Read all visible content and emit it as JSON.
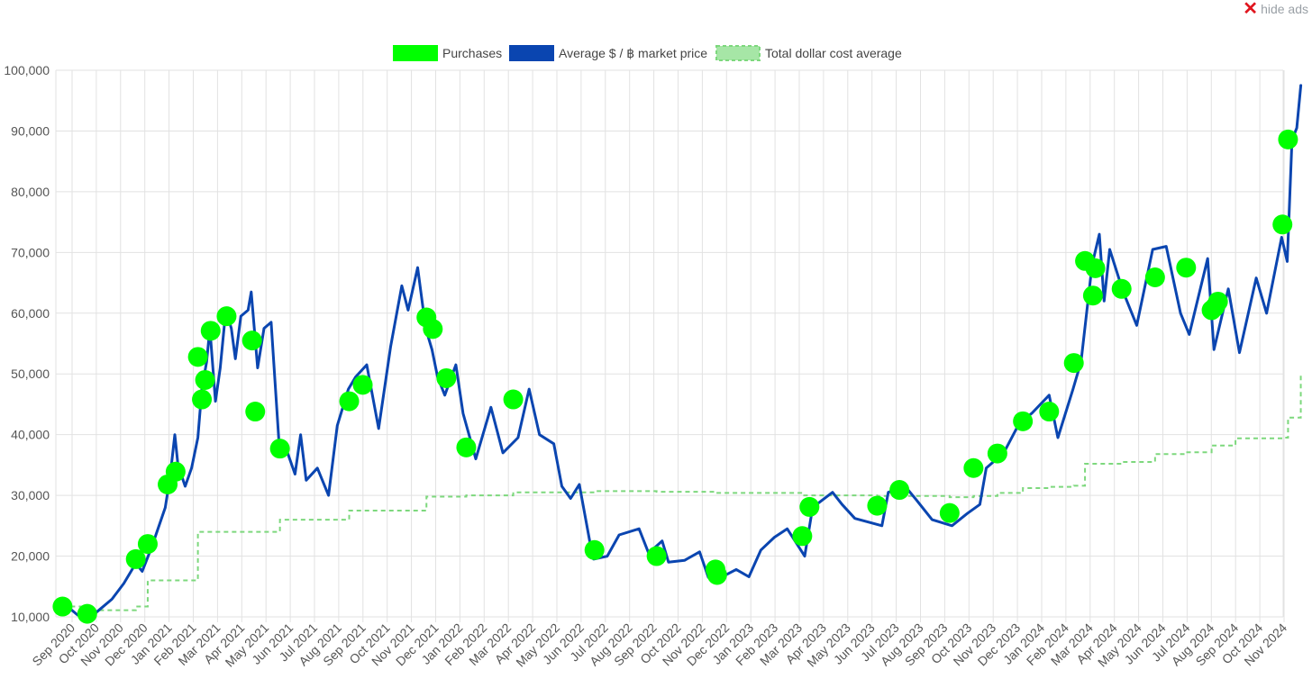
{
  "ui": {
    "hide_ads_label": "hide ads"
  },
  "chart_data": {
    "type": "line",
    "ylim": [
      10000,
      100000
    ],
    "grid": true,
    "legend_placement": "top-center",
    "y_ticks": [
      "10,000",
      "20,000",
      "30,000",
      "40,000",
      "50,000",
      "60,000",
      "70,000",
      "80,000",
      "90,000",
      "100,000"
    ],
    "x_ticks": [
      "Sep 2020",
      "Oct 2020",
      "Nov 2020",
      "Dec 2020",
      "Jan 2021",
      "Feb 2021",
      "Mar 2021",
      "Apr 2021",
      "May 2021",
      "Jun 2021",
      "Jul 2021",
      "Aug 2021",
      "Sep 2021",
      "Oct 2021",
      "Nov 2021",
      "Dec 2021",
      "Jan 2022",
      "Feb 2022",
      "Mar 2022",
      "Apr 2022",
      "May 2022",
      "Jun 2022",
      "Jul 2022",
      "Aug 2022",
      "Sep 2022",
      "Oct 2022",
      "Nov 2022",
      "Dec 2022",
      "Jan 2023",
      "Feb 2023",
      "Mar 2023",
      "Apr 2023",
      "May 2023",
      "Jun 2023",
      "Jul 2023",
      "Aug 2023",
      "Sep 2023",
      "Oct 2023",
      "Nov 2023",
      "Dec 2023",
      "Jan 2024",
      "Feb 2024",
      "Mar 2024",
      "Apr 2024",
      "May 2024",
      "Jun 2024",
      "Jul 2024",
      "Aug 2024",
      "Sep 2024",
      "Oct 2024",
      "Nov 2024"
    ],
    "series": [
      {
        "name": "Purchases",
        "kind": "points",
        "color": "#00ff00",
        "points": [
          {
            "x": "2020-08-20",
            "y": 11700
          },
          {
            "x": "2020-09-20",
            "y": 10500
          },
          {
            "x": "2020-11-20",
            "y": 19500
          },
          {
            "x": "2020-12-05",
            "y": 22000
          },
          {
            "x": "2020-12-30",
            "y": 31800
          },
          {
            "x": "2021-01-09",
            "y": 33900
          },
          {
            "x": "2021-02-06",
            "y": 52800
          },
          {
            "x": "2021-02-11",
            "y": 45800
          },
          {
            "x": "2021-02-15",
            "y": 49000
          },
          {
            "x": "2021-02-22",
            "y": 57100
          },
          {
            "x": "2021-03-14",
            "y": 59500
          },
          {
            "x": "2021-04-15",
            "y": 55500
          },
          {
            "x": "2021-04-19",
            "y": 43800
          },
          {
            "x": "2021-05-20",
            "y": 37700
          },
          {
            "x": "2021-08-15",
            "y": 45500
          },
          {
            "x": "2021-09-01",
            "y": 48200
          },
          {
            "x": "2021-11-20",
            "y": 59300
          },
          {
            "x": "2021-11-28",
            "y": 57400
          },
          {
            "x": "2021-12-15",
            "y": 49300
          },
          {
            "x": "2022-01-09",
            "y": 37900
          },
          {
            "x": "2022-03-09",
            "y": 45800
          },
          {
            "x": "2022-06-19",
            "y": 21000
          },
          {
            "x": "2022-09-05",
            "y": 20000
          },
          {
            "x": "2022-11-18",
            "y": 17800
          },
          {
            "x": "2022-11-20",
            "y": 16900
          },
          {
            "x": "2023-03-07",
            "y": 23300
          },
          {
            "x": "2023-03-16",
            "y": 28100
          },
          {
            "x": "2023-06-09",
            "y": 28300
          },
          {
            "x": "2023-07-07",
            "y": 30900
          },
          {
            "x": "2023-09-08",
            "y": 27100
          },
          {
            "x": "2023-10-08",
            "y": 34500
          },
          {
            "x": "2023-11-07",
            "y": 36900
          },
          {
            "x": "2023-12-09",
            "y": 42200
          },
          {
            "x": "2024-01-11",
            "y": 43800
          },
          {
            "x": "2024-02-11",
            "y": 51800
          },
          {
            "x": "2024-02-25",
            "y": 68600
          },
          {
            "x": "2024-03-06",
            "y": 62900
          },
          {
            "x": "2024-03-09",
            "y": 67400
          },
          {
            "x": "2024-04-11",
            "y": 64000
          },
          {
            "x": "2024-05-23",
            "y": 65900
          },
          {
            "x": "2024-07-01",
            "y": 67500
          },
          {
            "x": "2024-08-02",
            "y": 60500
          },
          {
            "x": "2024-08-06",
            "y": 61000
          },
          {
            "x": "2024-08-10",
            "y": 61900
          },
          {
            "x": "2024-10-30",
            "y": 74600
          },
          {
            "x": "2024-11-06",
            "y": 88600
          }
        ]
      },
      {
        "name": "Average $ / ฿ market price",
        "kind": "line",
        "color": "#0a45b0",
        "points": [
          {
            "x": "2020-08-14",
            "y": 11700
          },
          {
            "x": "2020-08-28",
            "y": 11500
          },
          {
            "x": "2020-09-08",
            "y": 10300
          },
          {
            "x": "2020-09-22",
            "y": 10500
          },
          {
            "x": "2020-10-01",
            "y": 10700
          },
          {
            "x": "2020-10-21",
            "y": 12900
          },
          {
            "x": "2020-11-05",
            "y": 15500
          },
          {
            "x": "2020-11-20",
            "y": 18800
          },
          {
            "x": "2020-11-28",
            "y": 17500
          },
          {
            "x": "2020-12-10",
            "y": 21500
          },
          {
            "x": "2020-12-27",
            "y": 28000
          },
          {
            "x": "2021-01-02",
            "y": 33000
          },
          {
            "x": "2021-01-08",
            "y": 40000
          },
          {
            "x": "2021-01-12",
            "y": 35000
          },
          {
            "x": "2021-01-21",
            "y": 31500
          },
          {
            "x": "2021-01-29",
            "y": 34500
          },
          {
            "x": "2021-02-06",
            "y": 39500
          },
          {
            "x": "2021-02-11",
            "y": 47500
          },
          {
            "x": "2021-02-17",
            "y": 52000
          },
          {
            "x": "2021-02-21",
            "y": 57500
          },
          {
            "x": "2021-02-28",
            "y": 45500
          },
          {
            "x": "2021-03-06",
            "y": 51000
          },
          {
            "x": "2021-03-13",
            "y": 60500
          },
          {
            "x": "2021-03-20",
            "y": 57500
          },
          {
            "x": "2021-03-25",
            "y": 52500
          },
          {
            "x": "2021-04-01",
            "y": 59500
          },
          {
            "x": "2021-04-10",
            "y": 60500
          },
          {
            "x": "2021-04-14",
            "y": 63500
          },
          {
            "x": "2021-04-22",
            "y": 51000
          },
          {
            "x": "2021-04-30",
            "y": 57500
          },
          {
            "x": "2021-05-09",
            "y": 58500
          },
          {
            "x": "2021-05-14",
            "y": 48500
          },
          {
            "x": "2021-05-20",
            "y": 36500
          },
          {
            "x": "2021-05-27",
            "y": 38000
          },
          {
            "x": "2021-06-08",
            "y": 33500
          },
          {
            "x": "2021-06-15",
            "y": 40000
          },
          {
            "x": "2021-06-22",
            "y": 32500
          },
          {
            "x": "2021-07-06",
            "y": 34500
          },
          {
            "x": "2021-07-20",
            "y": 30000
          },
          {
            "x": "2021-07-31",
            "y": 41500
          },
          {
            "x": "2021-08-14",
            "y": 47500
          },
          {
            "x": "2021-08-23",
            "y": 49500
          },
          {
            "x": "2021-09-06",
            "y": 51500
          },
          {
            "x": "2021-09-21",
            "y": 41000
          },
          {
            "x": "2021-10-06",
            "y": 54500
          },
          {
            "x": "2021-10-20",
            "y": 64500
          },
          {
            "x": "2021-10-28",
            "y": 60500
          },
          {
            "x": "2021-11-09",
            "y": 67500
          },
          {
            "x": "2021-11-19",
            "y": 57500
          },
          {
            "x": "2021-11-27",
            "y": 54000
          },
          {
            "x": "2021-12-04",
            "y": 49500
          },
          {
            "x": "2021-12-13",
            "y": 46500
          },
          {
            "x": "2021-12-27",
            "y": 51500
          },
          {
            "x": "2022-01-05",
            "y": 43500
          },
          {
            "x": "2022-01-21",
            "y": 36000
          },
          {
            "x": "2022-02-09",
            "y": 44500
          },
          {
            "x": "2022-02-24",
            "y": 37000
          },
          {
            "x": "2022-03-15",
            "y": 39500
          },
          {
            "x": "2022-03-29",
            "y": 47500
          },
          {
            "x": "2022-04-11",
            "y": 40000
          },
          {
            "x": "2022-04-29",
            "y": 38500
          },
          {
            "x": "2022-05-09",
            "y": 31500
          },
          {
            "x": "2022-05-20",
            "y": 29500
          },
          {
            "x": "2022-05-31",
            "y": 31800
          },
          {
            "x": "2022-06-13",
            "y": 22500
          },
          {
            "x": "2022-06-18",
            "y": 19500
          },
          {
            "x": "2022-07-05",
            "y": 20000
          },
          {
            "x": "2022-07-20",
            "y": 23500
          },
          {
            "x": "2022-08-14",
            "y": 24500
          },
          {
            "x": "2022-08-26",
            "y": 20500
          },
          {
            "x": "2022-09-12",
            "y": 22500
          },
          {
            "x": "2022-09-20",
            "y": 19000
          },
          {
            "x": "2022-10-10",
            "y": 19300
          },
          {
            "x": "2022-10-29",
            "y": 20700
          },
          {
            "x": "2022-11-09",
            "y": 16500
          },
          {
            "x": "2022-11-25",
            "y": 16500
          },
          {
            "x": "2022-12-14",
            "y": 17800
          },
          {
            "x": "2022-12-30",
            "y": 16600
          },
          {
            "x": "2023-01-14",
            "y": 21000
          },
          {
            "x": "2023-01-31",
            "y": 23100
          },
          {
            "x": "2023-02-16",
            "y": 24500
          },
          {
            "x": "2023-03-10",
            "y": 20000
          },
          {
            "x": "2023-03-20",
            "y": 28000
          },
          {
            "x": "2023-04-14",
            "y": 30500
          },
          {
            "x": "2023-04-26",
            "y": 28500
          },
          {
            "x": "2023-05-12",
            "y": 26200
          },
          {
            "x": "2023-06-15",
            "y": 25000
          },
          {
            "x": "2023-06-23",
            "y": 30500
          },
          {
            "x": "2023-07-14",
            "y": 31500
          },
          {
            "x": "2023-07-28",
            "y": 29300
          },
          {
            "x": "2023-08-17",
            "y": 26000
          },
          {
            "x": "2023-09-11",
            "y": 25000
          },
          {
            "x": "2023-09-30",
            "y": 27000
          },
          {
            "x": "2023-10-16",
            "y": 28500
          },
          {
            "x": "2023-10-24",
            "y": 34500
          },
          {
            "x": "2023-11-15",
            "y": 37000
          },
          {
            "x": "2023-12-05",
            "y": 42000
          },
          {
            "x": "2023-12-20",
            "y": 43500
          },
          {
            "x": "2024-01-11",
            "y": 46500
          },
          {
            "x": "2024-01-22",
            "y": 39500
          },
          {
            "x": "2024-02-10",
            "y": 47500
          },
          {
            "x": "2024-02-20",
            "y": 52000
          },
          {
            "x": "2024-03-05",
            "y": 68000
          },
          {
            "x": "2024-03-14",
            "y": 73000
          },
          {
            "x": "2024-03-20",
            "y": 62000
          },
          {
            "x": "2024-03-27",
            "y": 70500
          },
          {
            "x": "2024-04-13",
            "y": 63500
          },
          {
            "x": "2024-04-30",
            "y": 58000
          },
          {
            "x": "2024-05-20",
            "y": 70500
          },
          {
            "x": "2024-06-06",
            "y": 71000
          },
          {
            "x": "2024-06-24",
            "y": 60000
          },
          {
            "x": "2024-07-05",
            "y": 56500
          },
          {
            "x": "2024-07-28",
            "y": 69000
          },
          {
            "x": "2024-08-05",
            "y": 54000
          },
          {
            "x": "2024-08-23",
            "y": 64000
          },
          {
            "x": "2024-09-06",
            "y": 53500
          },
          {
            "x": "2024-09-27",
            "y": 65800
          },
          {
            "x": "2024-10-10",
            "y": 60000
          },
          {
            "x": "2024-10-29",
            "y": 72500
          },
          {
            "x": "2024-11-05",
            "y": 68500
          },
          {
            "x": "2024-11-11",
            "y": 88500
          },
          {
            "x": "2024-11-17",
            "y": 90500
          },
          {
            "x": "2024-11-22",
            "y": 97500
          }
        ]
      },
      {
        "name": "Total dollar cost average",
        "kind": "step",
        "color": "#7dd87d",
        "points": [
          {
            "x": "2020-08-20",
            "y": 11700
          },
          {
            "x": "2020-09-20",
            "y": 11100
          },
          {
            "x": "2020-11-20",
            "y": 11700
          },
          {
            "x": "2020-12-05",
            "y": 16000
          },
          {
            "x": "2021-02-06",
            "y": 24000
          },
          {
            "x": "2021-05-20",
            "y": 26000
          },
          {
            "x": "2021-08-15",
            "y": 27500
          },
          {
            "x": "2021-11-20",
            "y": 29800
          },
          {
            "x": "2022-01-09",
            "y": 30000
          },
          {
            "x": "2022-03-09",
            "y": 30500
          },
          {
            "x": "2022-06-19",
            "y": 30700
          },
          {
            "x": "2022-09-05",
            "y": 30600
          },
          {
            "x": "2022-11-18",
            "y": 30400
          },
          {
            "x": "2023-03-07",
            "y": 30000
          },
          {
            "x": "2023-06-09",
            "y": 29900
          },
          {
            "x": "2023-09-08",
            "y": 29700
          },
          {
            "x": "2023-10-08",
            "y": 29900
          },
          {
            "x": "2023-11-07",
            "y": 30400
          },
          {
            "x": "2023-12-09",
            "y": 31200
          },
          {
            "x": "2024-01-11",
            "y": 31400
          },
          {
            "x": "2024-02-11",
            "y": 31600
          },
          {
            "x": "2024-02-25",
            "y": 35200
          },
          {
            "x": "2024-04-11",
            "y": 35500
          },
          {
            "x": "2024-05-23",
            "y": 36800
          },
          {
            "x": "2024-07-01",
            "y": 37100
          },
          {
            "x": "2024-08-02",
            "y": 38200
          },
          {
            "x": "2024-09-01",
            "y": 39400
          },
          {
            "x": "2024-10-30",
            "y": 39500
          },
          {
            "x": "2024-11-06",
            "y": 42800
          },
          {
            "x": "2024-11-22",
            "y": 49700
          }
        ]
      }
    ]
  }
}
